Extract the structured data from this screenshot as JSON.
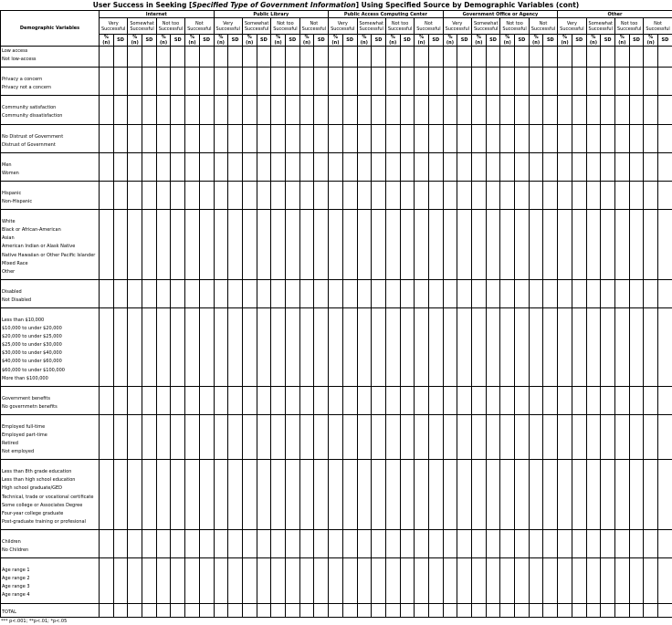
{
  "title": {
    "prefix": "User Success in Seeking [",
    "italic": "Specified Type of Government Information",
    "suffix": "] Using Specified Source by Demographic Variables (cont)"
  },
  "label_header": "Demographic Variables",
  "sources": [
    "Internet",
    "Public Library",
    "Public Access Computing Center",
    "Government Office or Agency",
    "Other"
  ],
  "levels": [
    "Very Successful",
    "Somewhat Successful",
    "Not too Successful",
    "Not Successful"
  ],
  "stat_headers": [
    "% (n)",
    "SD"
  ],
  "groups": [
    [
      "Low access",
      "Not low-access"
    ],
    [
      "Privacy a concern",
      "Privacy not a concern"
    ],
    [
      "Community satisfaction",
      "Community dissatisfaction"
    ],
    [
      "No Distrust of Government",
      "Distrust of Government"
    ],
    [
      "Men",
      "Women"
    ],
    [
      "Hispanic",
      "Non-Hispanic"
    ],
    [
      "White",
      "Black or African-American",
      "Asian",
      "American Indian or Alask Native",
      "Native Hawaiian or Other Pacific Islander",
      "Mixed Race",
      "Other"
    ],
    [
      "Disabled",
      "Not Disabled"
    ],
    [
      "Less than $10,000",
      "$10,000 to under $20,000",
      "$20,000 to under $25,000",
      "$25,000 to under $30,000",
      "$30,000 to under $40,000",
      "$40,000 to under $60,000",
      "$60,000 to under $100,000",
      "More than $100,000"
    ],
    [
      "Government benefits",
      "No governmetn benefits"
    ],
    [
      "Employed full-time",
      "Employed part-time",
      "Retired",
      "Not employed"
    ],
    [
      "Less than 8th grade education",
      "Less than high school education",
      "High school graduate/GED",
      "Technical, trade or vocational certificate",
      "Some college or Associates Degree",
      "Four-year college graduate",
      "Post-graduate training or profesional"
    ],
    [
      "Children",
      "No Children"
    ],
    [
      "Age range 1",
      "Age range 2",
      "Age range 3",
      "Age range 4"
    ]
  ],
  "total": "TOTAL",
  "footnote": "*** p<.001; **p<.01; *p<.05"
}
